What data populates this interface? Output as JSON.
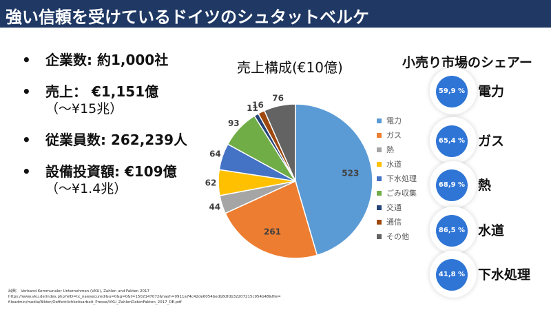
{
  "header": {
    "title": "強い信頼を受けているドイツのシュタットベルケ"
  },
  "facts": [
    {
      "label": "企業数:  約1,000社",
      "sub": ""
    },
    {
      "label": "売上：  €1,151億",
      "sub": "（～¥15兆）"
    },
    {
      "label": "従業員数:  262,239人",
      "sub": ""
    },
    {
      "label": "設備投資額:  €109億",
      "sub": "（～¥1.4兆）"
    }
  ],
  "bullet_glyph": "•",
  "chart_data": {
    "type": "pie",
    "title": "売上構成(€10億)",
    "categories": [
      "電力",
      "ガス",
      "熱",
      "水道",
      "下水処理",
      "ごみ収集",
      "交通",
      "通信",
      "その他"
    ],
    "values": [
      523,
      261,
      44,
      62,
      64,
      93,
      11,
      16,
      76
    ],
    "colors": [
      "#5b9bd5",
      "#ed7d31",
      "#a5a5a5",
      "#ffc000",
      "#4472c4",
      "#70ad47",
      "#264478",
      "#9e480e",
      "#636363"
    ],
    "legend_position": "right",
    "start": "top, clockwise"
  },
  "market_share": {
    "title": "小売り市場のシェアー",
    "items": [
      {
        "value": "59,9 %",
        "label": "電力"
      },
      {
        "value": "65,4 %",
        "label": "ガス"
      },
      {
        "value": "68,9 %",
        "label": "熱"
      },
      {
        "value": "86,5 %",
        "label": "水道"
      },
      {
        "value": "41,8 %",
        "label": "下水処理"
      }
    ],
    "disc_color": "#2e75d6"
  },
  "sources": [
    "出典：  Verband Kommunaler Unternehmen (VKU), Zahlen und Fakten 2017",
    "https://www.vku.de/index.php?eID=tx_naws­ecure­dl&u=0&g=0&t=1502147072&hash=0911a74c42de6054bedb8dfdb32207215c954b48&file=",
    "fileadmin/media/Bilder/Oeffentlichkeitsarbeit_Presse/VKU_ZahlenDatenFakten_2017_DE.pdf"
  ]
}
